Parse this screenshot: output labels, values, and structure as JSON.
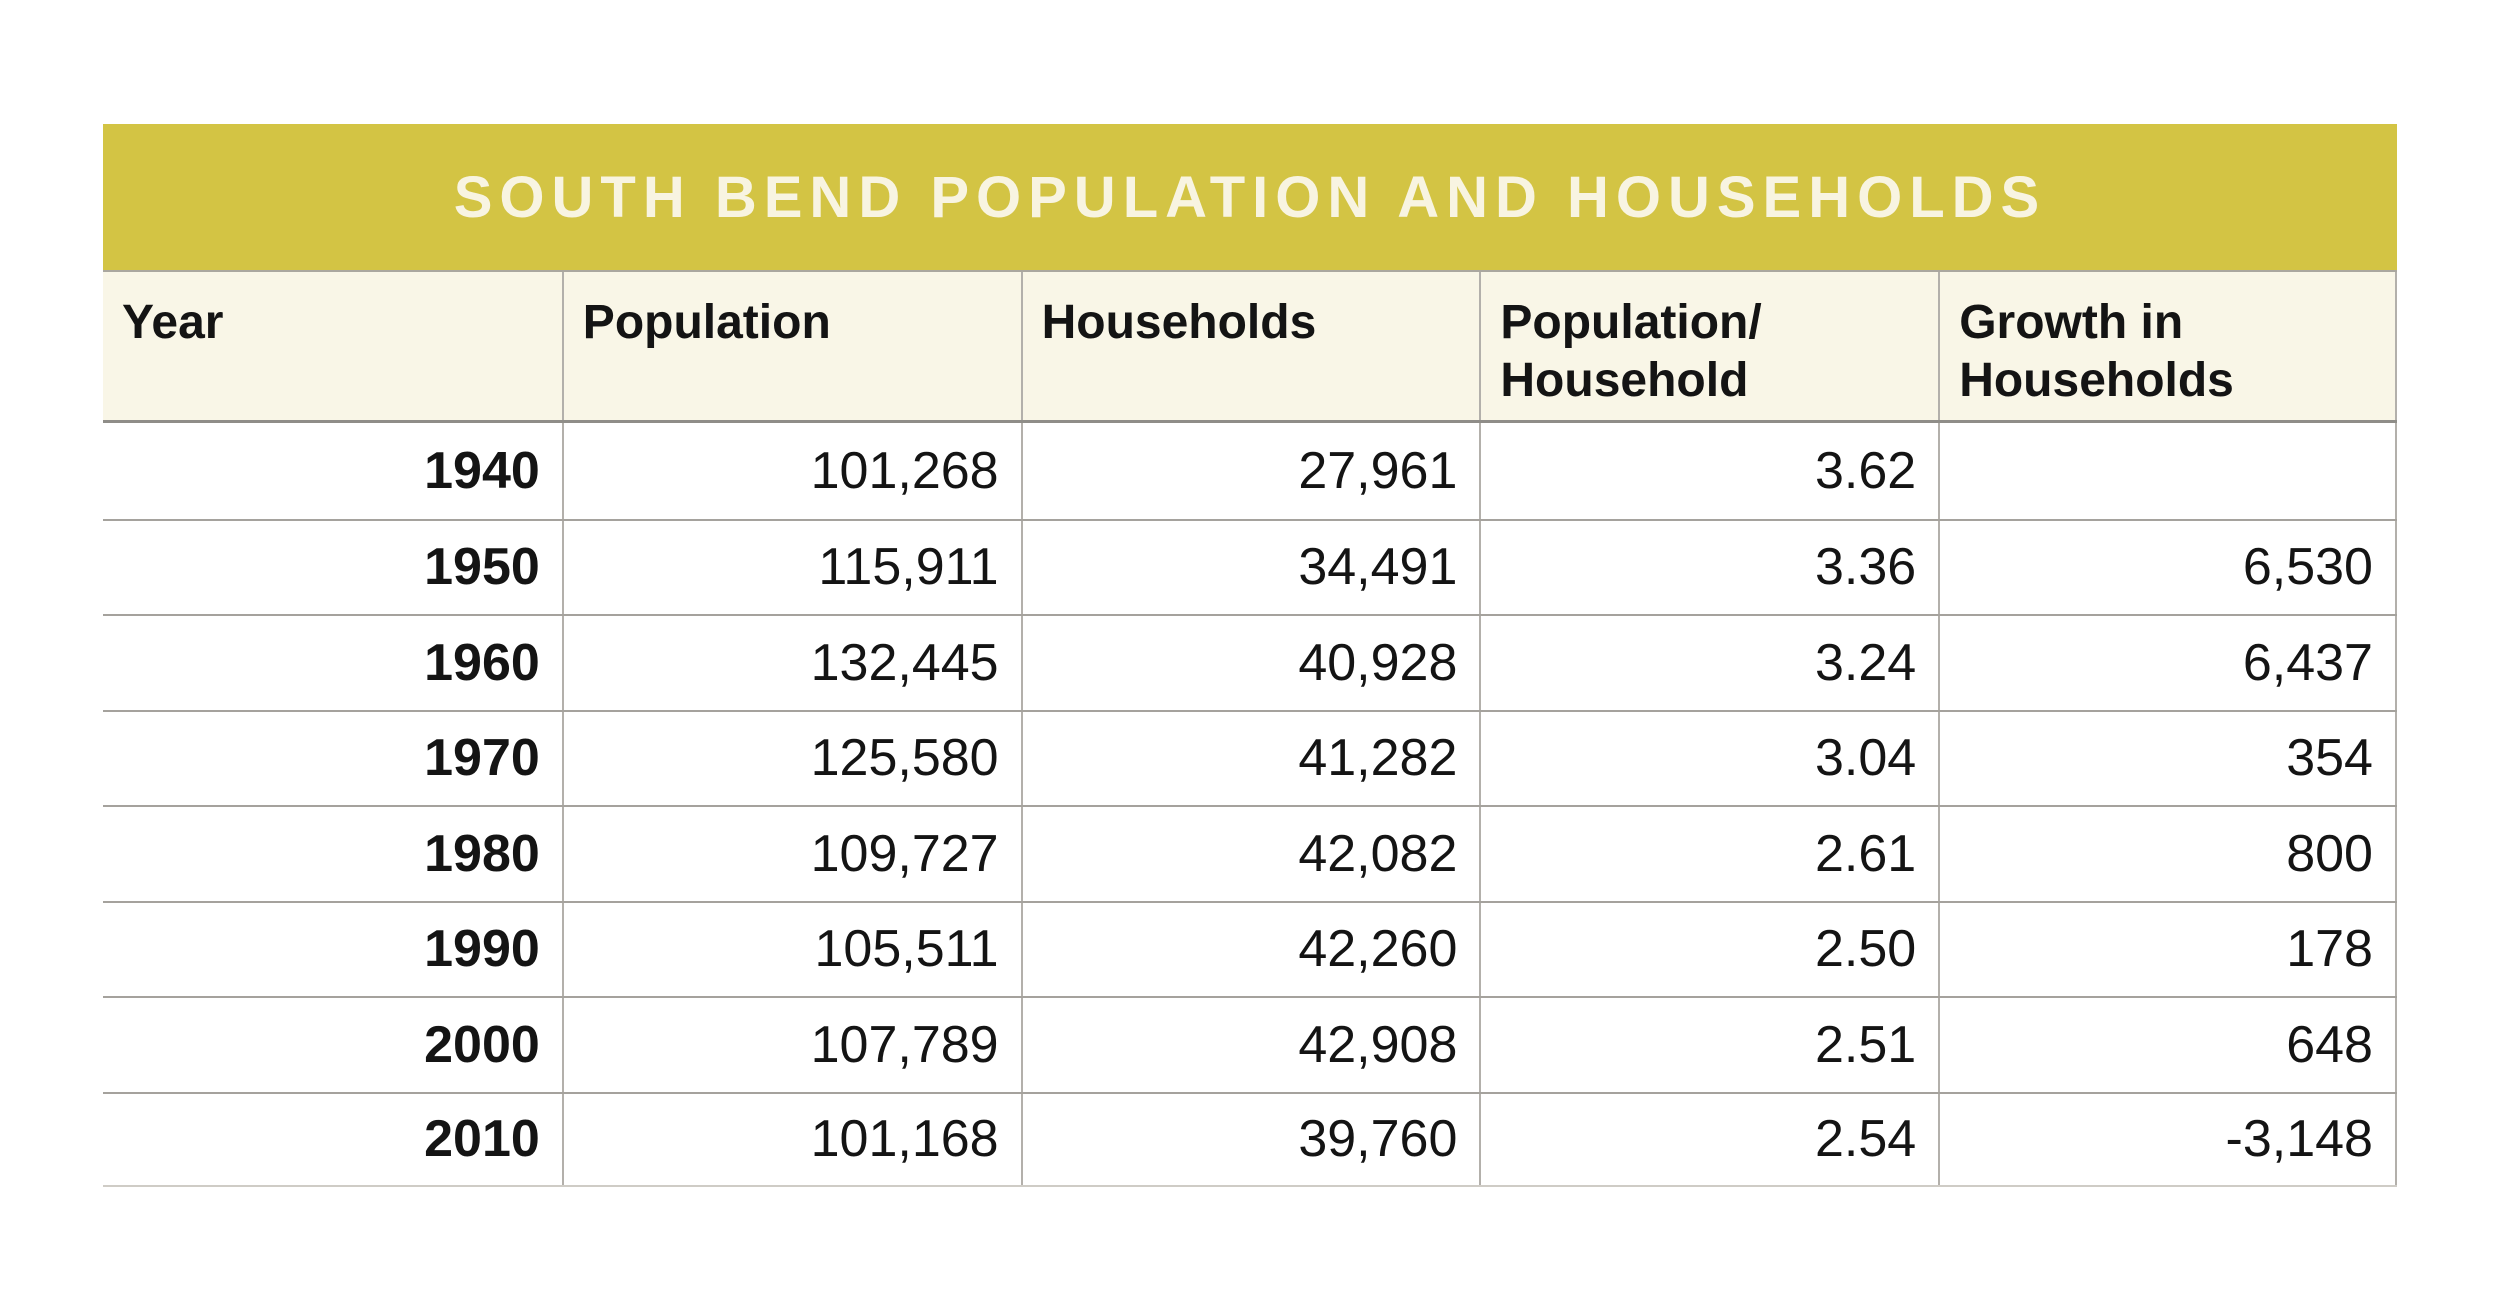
{
  "title": "SOUTH BEND POPULATION AND HOUSEHOLDS",
  "colors": {
    "title_bar_background": "#d3c444",
    "title_text": "#f8f4e1",
    "header_background": "#f9f6e7",
    "body_text": "#141414",
    "row_rule": "#a5a29d",
    "column_rule": "#b3b0ab",
    "header_bottom_rule": "#8f8d88"
  },
  "table": {
    "columns": [
      "Year",
      "Population",
      "Households",
      "Population/\nHousehold",
      "Growth in\nHouseholds"
    ],
    "rows": [
      [
        "1940",
        "101,268",
        "27,961",
        "3.62",
        ""
      ],
      [
        "1950",
        "115,911",
        "34,491",
        "3.36",
        "6,530"
      ],
      [
        "1960",
        "132,445",
        "40,928",
        "3.24",
        "6,437"
      ],
      [
        "1970",
        "125,580",
        "41,282",
        "3.04",
        "354"
      ],
      [
        "1980",
        "109,727",
        "42,082",
        "2.61",
        "800"
      ],
      [
        "1990",
        "105,511",
        "42,260",
        "2.50",
        "178"
      ],
      [
        "2000",
        "107,789",
        "42,908",
        "2.51",
        "648"
      ],
      [
        "2010",
        "101,168",
        "39,760",
        "2.54",
        "-3,148"
      ]
    ]
  },
  "chart_data": {
    "type": "table",
    "title": "SOUTH BEND POPULATION AND HOUSEHOLDS",
    "columns": [
      "Year",
      "Population",
      "Households",
      "Population/Household",
      "Growth in Households"
    ],
    "rows": [
      [
        1940,
        101268,
        27961,
        3.62,
        null
      ],
      [
        1950,
        115911,
        34491,
        3.36,
        6530
      ],
      [
        1960,
        132445,
        40928,
        3.24,
        6437
      ],
      [
        1970,
        125580,
        41282,
        3.04,
        354
      ],
      [
        1980,
        109727,
        42082,
        2.61,
        800
      ],
      [
        1990,
        105511,
        42260,
        2.5,
        178
      ],
      [
        2000,
        107789,
        42908,
        2.51,
        648
      ],
      [
        2010,
        101168,
        39760,
        2.54,
        -3148
      ]
    ]
  }
}
